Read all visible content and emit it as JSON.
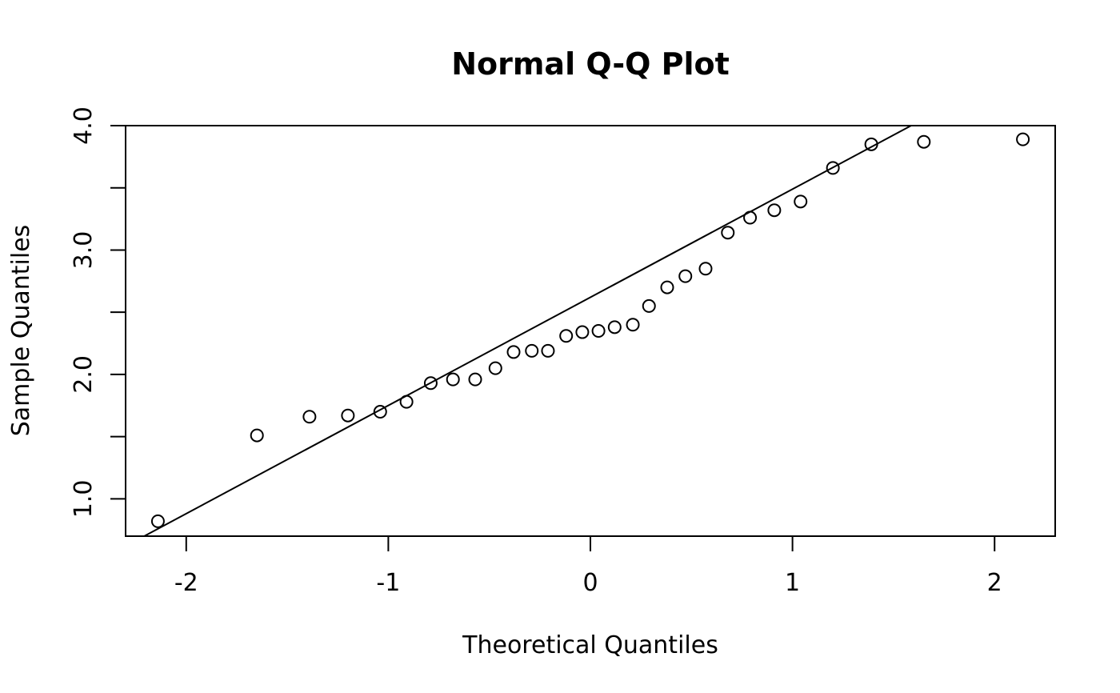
{
  "chart_data": {
    "type": "scatter",
    "title": "Normal Q-Q Plot",
    "xlabel": "Theoretical Quantiles",
    "ylabel": "Sample Quantiles",
    "xlim": [
      -2.3,
      2.3
    ],
    "ylim": [
      0.7,
      4.0
    ],
    "x_ticks": [
      -2,
      -1,
      0,
      1,
      2
    ],
    "x_tick_labels": [
      "-2",
      "-1",
      "0",
      "1",
      "2"
    ],
    "y_ticks": [
      1.0,
      1.5,
      2.0,
      2.5,
      3.0,
      3.5,
      4.0
    ],
    "y_tick_labels": [
      "1.0",
      "",
      "2.0",
      "",
      "3.0",
      "",
      "4.0"
    ],
    "grid": false,
    "legend": "none",
    "marker": "open-circle",
    "reference_line": {
      "from": [
        -2.3,
        0.62
      ],
      "to": [
        2.3,
        4.62
      ]
    },
    "x": [
      -2.14,
      -1.65,
      -1.39,
      -1.2,
      -1.04,
      -0.91,
      -0.79,
      -0.68,
      -0.57,
      -0.47,
      -0.38,
      -0.29,
      -0.21,
      -0.12,
      -0.04,
      0.04,
      0.12,
      0.21,
      0.29,
      0.38,
      0.47,
      0.57,
      0.68,
      0.79,
      0.91,
      1.04,
      1.2,
      1.39,
      1.65,
      2.14
    ],
    "y": [
      0.82,
      1.51,
      1.66,
      1.67,
      1.7,
      1.78,
      1.93,
      1.96,
      1.96,
      2.05,
      2.18,
      2.19,
      2.19,
      2.31,
      2.34,
      2.35,
      2.38,
      2.4,
      2.55,
      2.7,
      2.79,
      2.85,
      3.14,
      3.26,
      3.32,
      3.39,
      3.66,
      3.85,
      3.87,
      3.89
    ]
  }
}
